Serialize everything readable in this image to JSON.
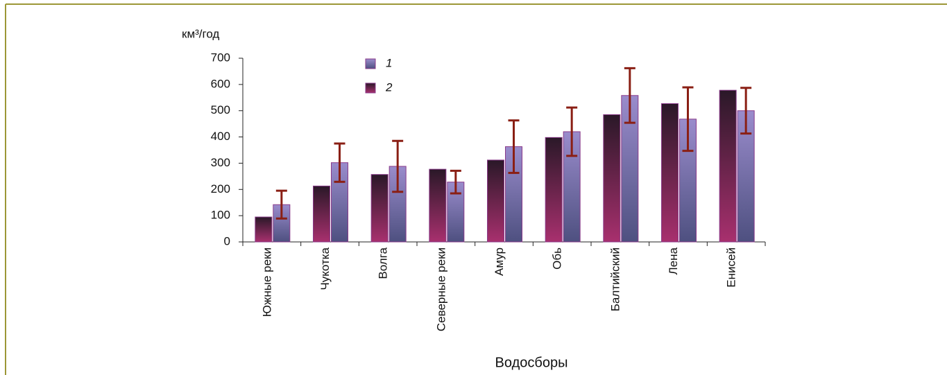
{
  "chart_data": {
    "type": "bar",
    "y_axis_label": "км³/год",
    "x_axis_label": "Водосборы",
    "categories": [
      "Южные реки",
      "Чукотка",
      "Волга",
      "Северные реки",
      "Амур",
      "Обь",
      "Балтийский",
      "Лена",
      "Енисей"
    ],
    "series": [
      {
        "name": "1",
        "color": "#9a8ccc",
        "values": [
          142,
          302,
          288,
          228,
          363,
          420,
          558,
          468,
          500
        ],
        "errors": [
          53,
          73,
          97,
          43,
          100,
          92,
          104,
          121,
          87
        ]
      },
      {
        "name": "2",
        "color": "#a8306e",
        "values": [
          95,
          213,
          257,
          277,
          312,
          398,
          485,
          527,
          578
        ]
      }
    ],
    "error_color": "#8a1f14",
    "ylim": [
      0,
      700
    ],
    "yticks": [
      0,
      100,
      200,
      300,
      400,
      500,
      600,
      700
    ]
  }
}
